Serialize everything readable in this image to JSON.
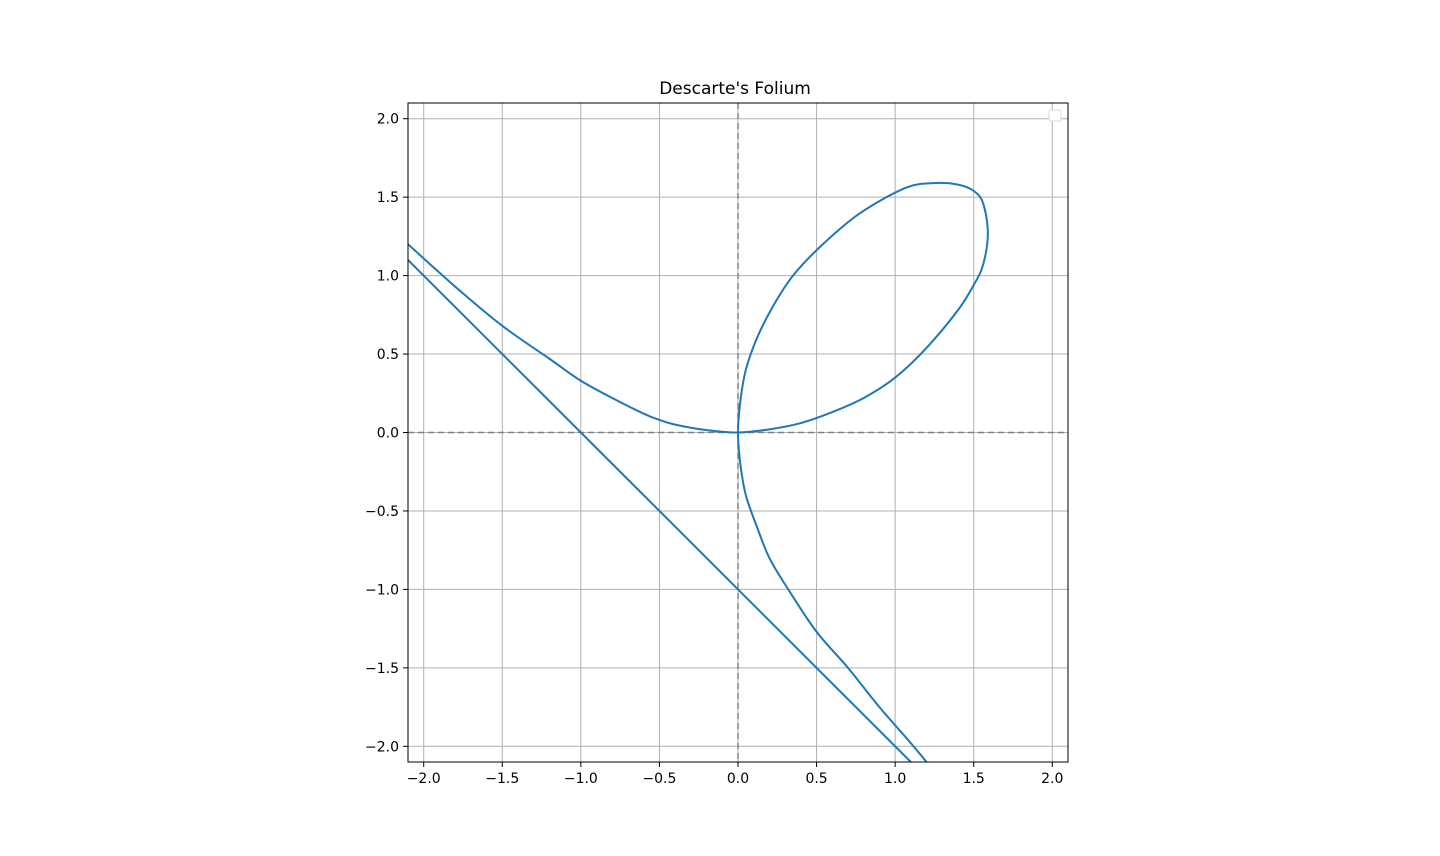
{
  "chart_data": {
    "type": "line",
    "title": "Descarte's Folium",
    "xlabel": "",
    "ylabel": "",
    "xlim": [
      -2.1,
      2.1
    ],
    "ylim": [
      -2.1,
      2.1
    ],
    "grid": true,
    "legend": "top-right, empty",
    "x_ticks": [
      -2.0,
      -1.5,
      -1.0,
      -0.5,
      0.0,
      0.5,
      1.0,
      1.5,
      2.0
    ],
    "y_ticks": [
      -2.0,
      -1.5,
      -1.0,
      -0.5,
      0.0,
      0.5,
      1.0,
      1.5,
      2.0
    ],
    "x_tick_labels": [
      "−2.0",
      "−1.5",
      "−1.0",
      "−0.5",
      "0.0",
      "0.5",
      "1.0",
      "1.5",
      "2.0"
    ],
    "y_tick_labels": [
      "−2.0",
      "−1.5",
      "−1.0",
      "−0.5",
      "0.0",
      "0.5",
      "1.0",
      "1.5",
      "2.0"
    ],
    "reference_lines": [
      {
        "orientation": "horizontal",
        "value": 0.0,
        "style": "dashed",
        "color": "#808080"
      },
      {
        "orientation": "vertical",
        "value": 0.0,
        "style": "dashed",
        "color": "#808080"
      }
    ],
    "series": [
      {
        "color": "#1f77b4",
        "points": [
          [
            -2.1,
            1.2
          ],
          [
            -1.8,
            0.93
          ],
          [
            -1.5,
            0.68
          ],
          [
            -1.2,
            0.47
          ],
          [
            -1.0,
            0.33
          ],
          [
            -0.8,
            0.22
          ],
          [
            -0.6,
            0.12
          ],
          [
            -0.5,
            0.08
          ],
          [
            -0.4,
            0.05
          ],
          [
            -0.2,
            0.015
          ],
          [
            0.0,
            0.0
          ],
          [
            0.2,
            0.02
          ],
          [
            0.4,
            0.06
          ],
          [
            0.6,
            0.13
          ],
          [
            0.8,
            0.22
          ],
          [
            1.0,
            0.35
          ],
          [
            1.2,
            0.54
          ],
          [
            1.4,
            0.78
          ],
          [
            1.5,
            0.94
          ],
          [
            1.56,
            1.07
          ],
          [
            1.59,
            1.27
          ],
          [
            1.56,
            1.46
          ],
          [
            1.5,
            1.54
          ],
          [
            1.4,
            1.58
          ],
          [
            1.26,
            1.59
          ],
          [
            1.07,
            1.56
          ],
          [
            0.78,
            1.4
          ],
          [
            0.54,
            1.2
          ],
          [
            0.35,
            1.0
          ],
          [
            0.22,
            0.8
          ],
          [
            0.12,
            0.6
          ],
          [
            0.05,
            0.4
          ],
          [
            0.015,
            0.2
          ],
          [
            0.0,
            0.0
          ],
          [
            0.015,
            -0.2
          ],
          [
            0.05,
            -0.4
          ],
          [
            0.12,
            -0.6
          ],
          [
            0.2,
            -0.8
          ],
          [
            0.32,
            -1.0
          ],
          [
            0.5,
            -1.27
          ],
          [
            0.7,
            -1.5
          ],
          [
            0.9,
            -1.75
          ],
          [
            1.1,
            -1.98
          ],
          [
            1.2,
            -2.1
          ]
        ]
      },
      {
        "color": "#1f77b4",
        "points": [
          [
            -2.1,
            1.1
          ],
          [
            1.1,
            -2.1
          ]
        ]
      }
    ]
  }
}
